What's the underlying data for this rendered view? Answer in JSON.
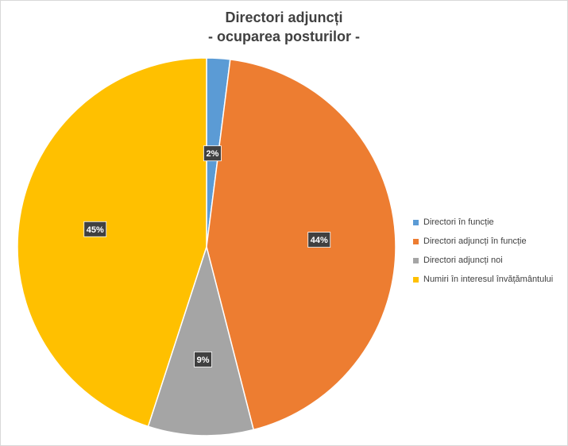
{
  "chart_data": {
    "type": "pie",
    "title": "Directori adjuncți",
    "subtitle": "- ocuparea posturilor -",
    "legend_position": "right",
    "slices": [
      {
        "label": "Directori în funcție",
        "value": 2,
        "display": "2%",
        "color": "#5b9bd5"
      },
      {
        "label": "Directori adjuncți în funcție",
        "value": 44,
        "display": "44%",
        "color": "#ed7d31"
      },
      {
        "label": "Directori adjuncți noi",
        "value": 9,
        "display": "9%",
        "color": "#a5a5a5"
      },
      {
        "label": "Numiri în interesul învățământului",
        "value": 45,
        "display": "45%",
        "color": "#ffc000"
      }
    ]
  }
}
